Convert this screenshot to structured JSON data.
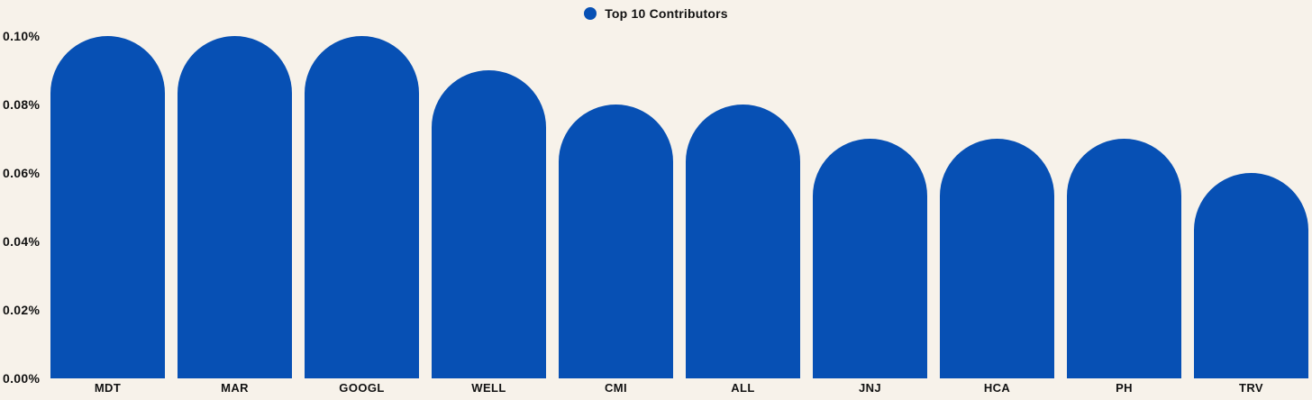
{
  "legend": {
    "label": "Top 10 Contributors"
  },
  "colors": {
    "bar": "#0750b4",
    "background": "#f7f2ea",
    "text": "#121212"
  },
  "chart_data": {
    "type": "bar",
    "title": "Top 10 Contributors",
    "categories": [
      "MDT",
      "MAR",
      "GOOGL",
      "WELL",
      "CMI",
      "ALL",
      "JNJ",
      "HCA",
      "PH",
      "TRV"
    ],
    "values": [
      0.1,
      0.1,
      0.1,
      0.09,
      0.08,
      0.08,
      0.07,
      0.07,
      0.07,
      0.06
    ],
    "value_unit": "%",
    "xlabel": "",
    "ylabel": "",
    "ylim": [
      0,
      0.1
    ],
    "yticks": [
      {
        "value": 0.0,
        "label": "0.00%"
      },
      {
        "value": 0.02,
        "label": "0.02%"
      },
      {
        "value": 0.04,
        "label": "0.04%"
      },
      {
        "value": 0.06,
        "label": "0.06%"
      },
      {
        "value": 0.08,
        "label": "0.08%"
      },
      {
        "value": 0.1,
        "label": "0.10%"
      }
    ],
    "grid": false,
    "legend_position": "top-center",
    "bar_style": "rounded-top"
  }
}
